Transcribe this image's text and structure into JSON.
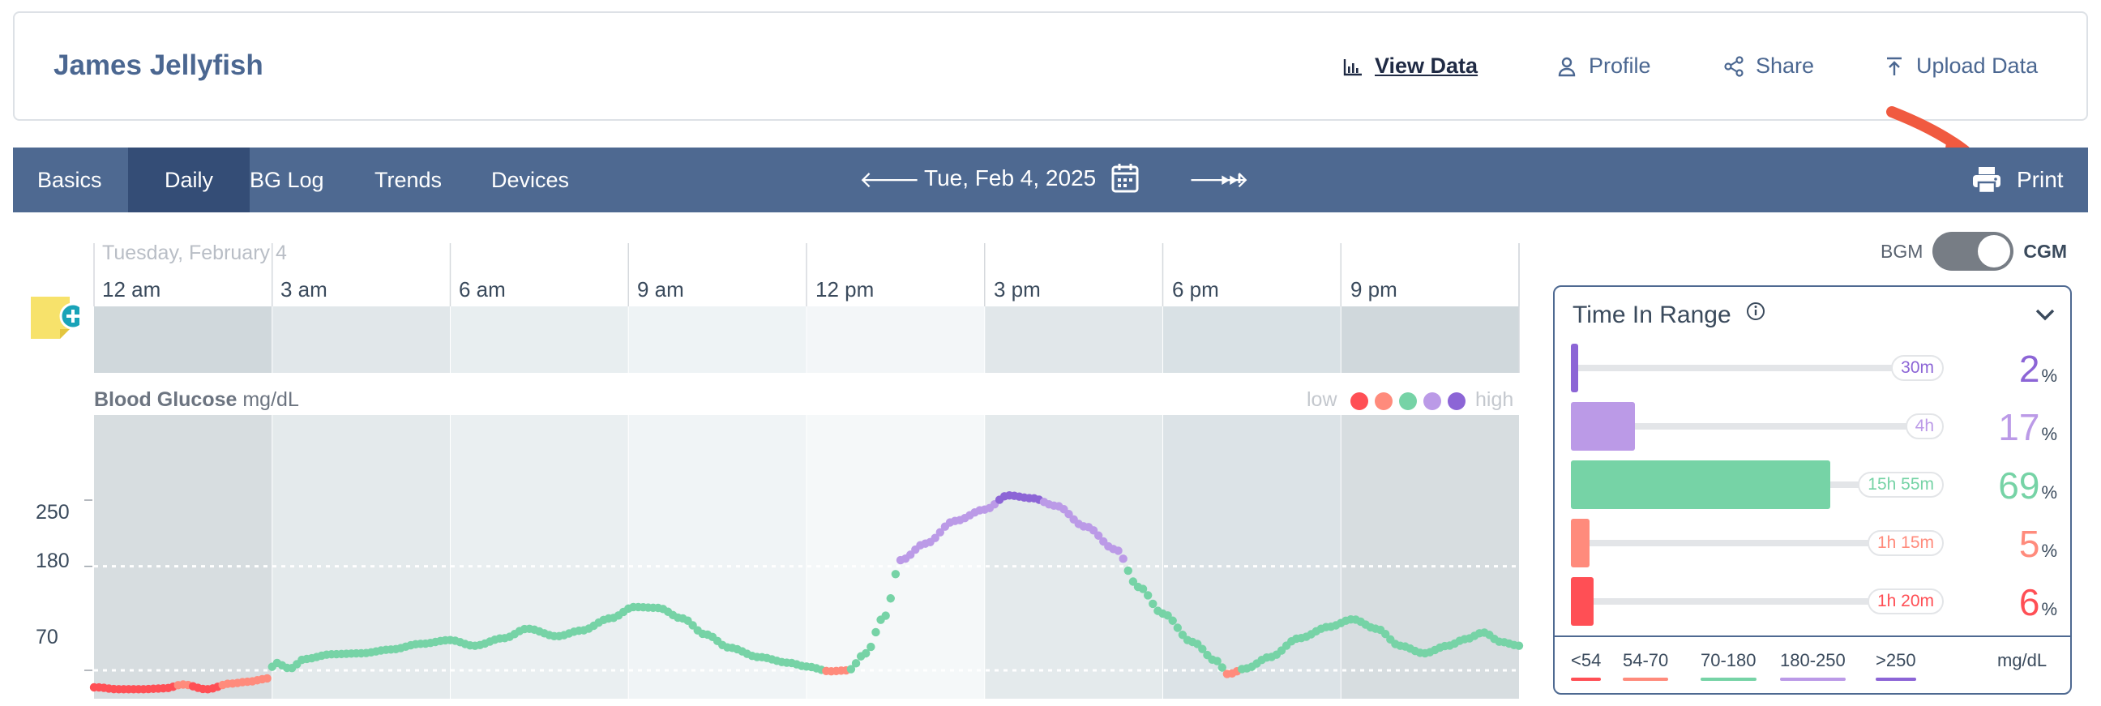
{
  "header": {
    "patient_name": "James Jellyfish",
    "nav": {
      "view_data": "View Data",
      "profile": "Profile",
      "share": "Share",
      "upload_data": "Upload Data"
    }
  },
  "navbar": {
    "tabs": [
      "Basics",
      "Daily",
      "BG Log",
      "Trends",
      "Devices"
    ],
    "active_tab": "Daily",
    "date": "Tue, Feb 4, 2025",
    "print_label": "Print",
    "color": "#4e6991",
    "active_color": "#344d76"
  },
  "chart": {
    "day_label": "Tuesday, February 4",
    "hour_labels": [
      "12 am",
      "3 am",
      "6 am",
      "9 am",
      "12 pm",
      "3 pm",
      "6 pm",
      "9 pm"
    ],
    "bg_title": "Blood Glucose",
    "bg_units": "mg/dL",
    "legend_low": "low",
    "legend_high": "high",
    "y_ticks": [
      "250",
      "180",
      "70"
    ]
  },
  "chart_data": {
    "type": "scatter",
    "title": "Blood Glucose",
    "ylabel": "mg/dL",
    "x_unit": "hour of day",
    "xlim": [
      0,
      24
    ],
    "ylim": [
      40,
      340
    ],
    "target_lines": [
      70,
      180
    ],
    "colors": {
      "very_low": "#ff4f55",
      "low": "#ff8b7c",
      "target": "#76d3a6",
      "high": "#bb9ae7",
      "very_high": "#8c65d6"
    },
    "anchors": [
      [
        0.05,
        52
      ],
      [
        0.4,
        50
      ],
      [
        0.8,
        50
      ],
      [
        1.2,
        51
      ],
      [
        1.5,
        55
      ],
      [
        1.9,
        50
      ],
      [
        2.3,
        56
      ],
      [
        2.6,
        58
      ],
      [
        2.9,
        61
      ],
      [
        3.05,
        78
      ],
      [
        3.3,
        72
      ],
      [
        3.55,
        82
      ],
      [
        4.0,
        87
      ],
      [
        4.5,
        88
      ],
      [
        5.0,
        92
      ],
      [
        5.5,
        98
      ],
      [
        6.0,
        102
      ],
      [
        6.4,
        96
      ],
      [
        6.9,
        104
      ],
      [
        7.3,
        114
      ],
      [
        7.8,
        106
      ],
      [
        8.2,
        112
      ],
      [
        8.7,
        125
      ],
      [
        9.1,
        137
      ],
      [
        9.5,
        136
      ],
      [
        9.9,
        125
      ],
      [
        10.3,
        108
      ],
      [
        10.7,
        94
      ],
      [
        11.2,
        84
      ],
      [
        11.7,
        78
      ],
      [
        12.0,
        74
      ],
      [
        12.4,
        69
      ],
      [
        12.7,
        70
      ],
      [
        13.0,
        88
      ],
      [
        13.3,
        126
      ],
      [
        13.6,
        187
      ],
      [
        14.0,
        204
      ],
      [
        14.5,
        228
      ],
      [
        15.0,
        240
      ],
      [
        15.4,
        255
      ],
      [
        15.8,
        252
      ],
      [
        16.2,
        244
      ],
      [
        16.7,
        222
      ],
      [
        17.2,
        198
      ],
      [
        17.6,
        158
      ],
      [
        18.0,
        130
      ],
      [
        18.5,
        100
      ],
      [
        18.9,
        80
      ],
      [
        19.1,
        66
      ],
      [
        19.4,
        72
      ],
      [
        19.8,
        84
      ],
      [
        20.3,
        104
      ],
      [
        20.8,
        116
      ],
      [
        21.2,
        124
      ],
      [
        21.6,
        114
      ],
      [
        22.0,
        96
      ],
      [
        22.4,
        88
      ],
      [
        22.8,
        96
      ],
      [
        23.1,
        103
      ],
      [
        23.4,
        110
      ],
      [
        23.7,
        100
      ],
      [
        24.0,
        96
      ]
    ]
  },
  "controls": {
    "bgm_label": "BGM",
    "cgm_label": "CGM"
  },
  "time_in_range": {
    "title": "Time In Range",
    "rows": [
      {
        "duration": "30m",
        "percent": "2",
        "fraction": 0.02,
        "color": "#8c65d6"
      },
      {
        "duration": "4h",
        "percent": "17",
        "fraction": 0.17,
        "color": "#bb9ae7"
      },
      {
        "duration": "15h 55m",
        "percent": "69",
        "fraction": 0.69,
        "color": "#76d3a6"
      },
      {
        "duration": "1h 15m",
        "percent": "5",
        "fraction": 0.05,
        "color": "#ff8b7c"
      },
      {
        "duration": "1h 20m",
        "percent": "6",
        "fraction": 0.06,
        "color": "#ff4f55"
      }
    ],
    "percent_sign": "%",
    "categories": [
      {
        "label": "<54",
        "color": "#ff4f55"
      },
      {
        "label": "54-70",
        "color": "#ff8b7c"
      },
      {
        "label": "70-180",
        "color": "#76d3a6"
      },
      {
        "label": "180-250",
        "color": "#bb9ae7"
      },
      {
        "label": ">250",
        "color": "#8c65d6"
      }
    ],
    "units": "mg/dL"
  }
}
